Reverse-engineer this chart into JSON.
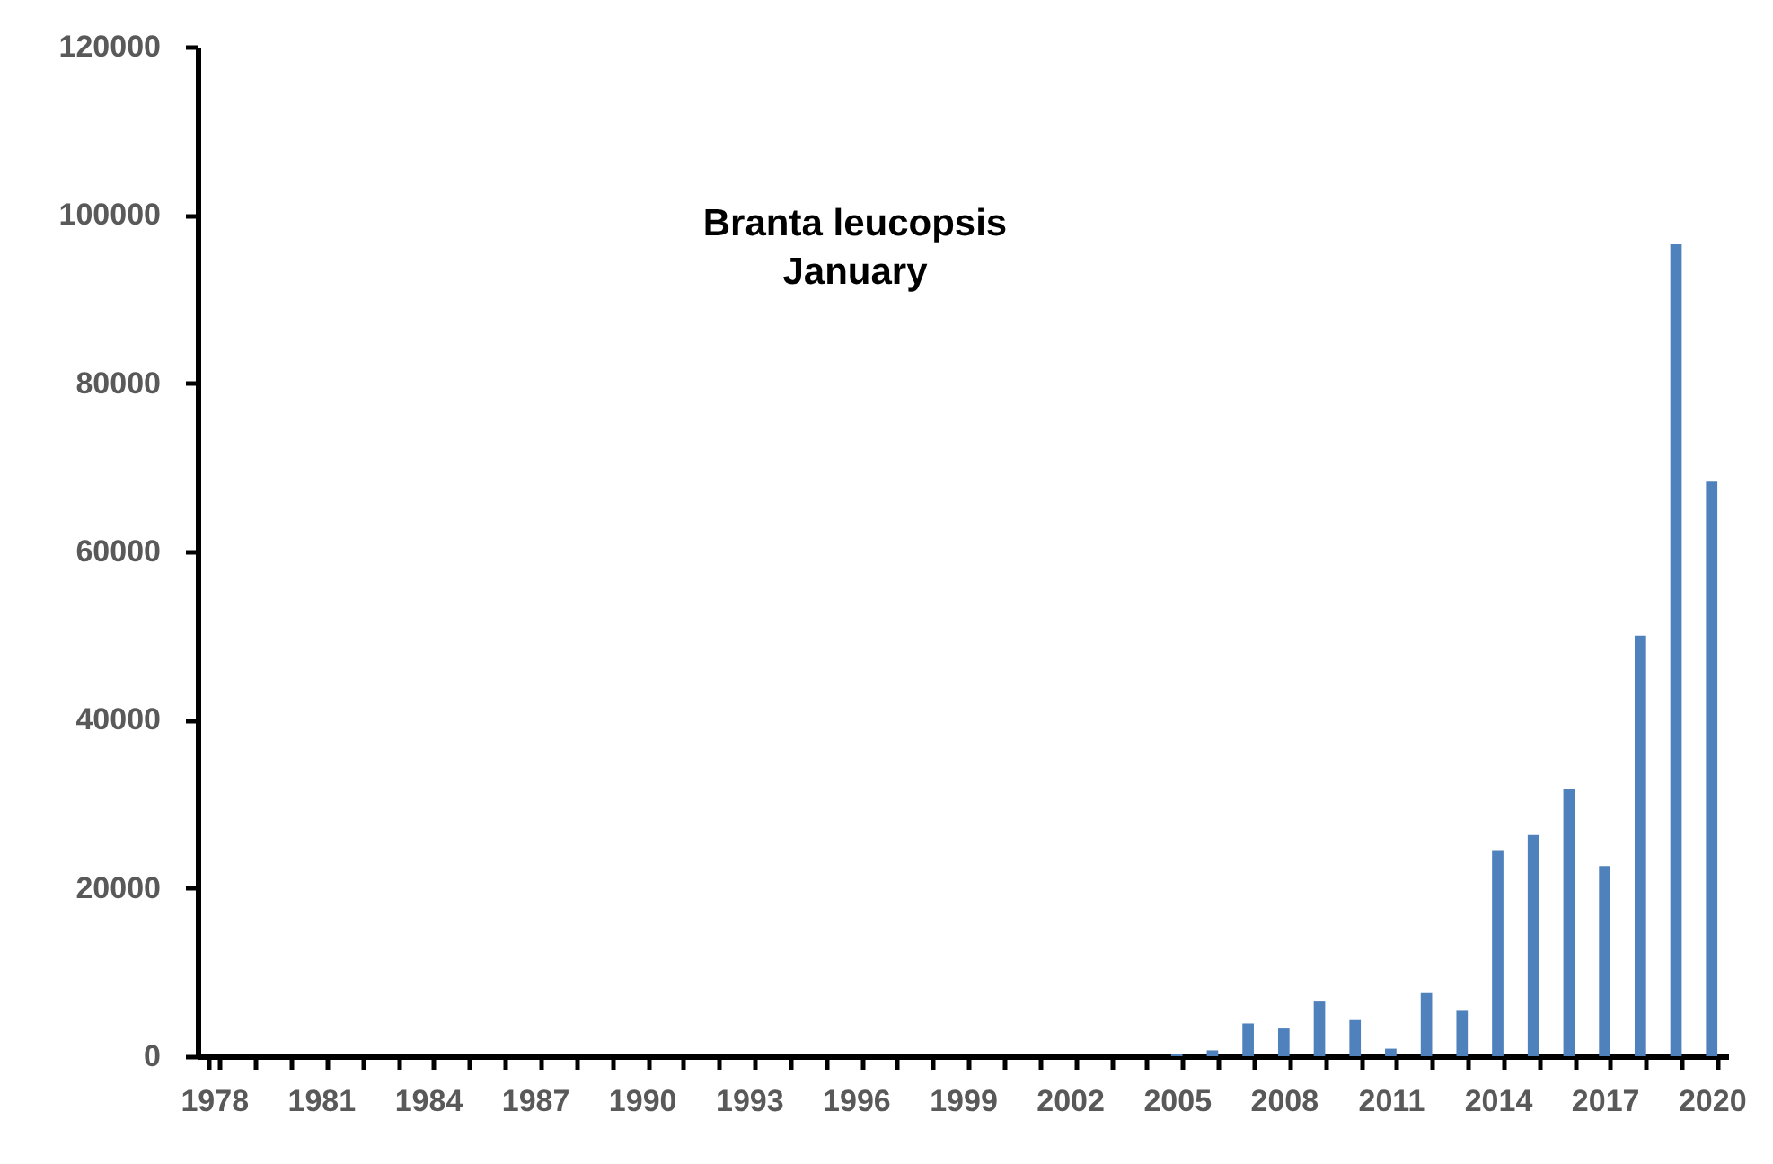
{
  "chart_data": {
    "type": "bar",
    "title": "Branta leucopsis",
    "subtitle": "January",
    "categories": [
      "1978",
      null,
      null,
      "1981",
      null,
      null,
      "1984",
      null,
      null,
      "1987",
      null,
      null,
      "1990",
      null,
      null,
      "1993",
      null,
      null,
      "1996",
      null,
      null,
      "1999",
      null,
      null,
      "2002",
      null,
      null,
      "2005",
      null,
      null,
      "2008",
      null,
      null,
      "2011",
      null,
      null,
      "2014",
      null,
      null,
      "2017",
      null,
      null,
      "2020"
    ],
    "values": [
      0,
      0,
      0,
      0,
      0,
      0,
      0,
      0,
      0,
      0,
      0,
      0,
      0,
      0,
      0,
      0,
      0,
      0,
      0,
      0,
      0,
      0,
      0,
      0,
      0,
      0,
      0,
      300,
      700,
      3900,
      3300,
      6500,
      4300,
      900,
      7500,
      5400,
      24500,
      26300,
      31800,
      22600,
      50000,
      96500,
      68300
    ],
    "color": "#4f81bd",
    "ylim": [
      0,
      120000
    ],
    "yticks": [
      0,
      20000,
      40000,
      60000,
      80000,
      100000,
      120000
    ],
    "grid": false
  }
}
